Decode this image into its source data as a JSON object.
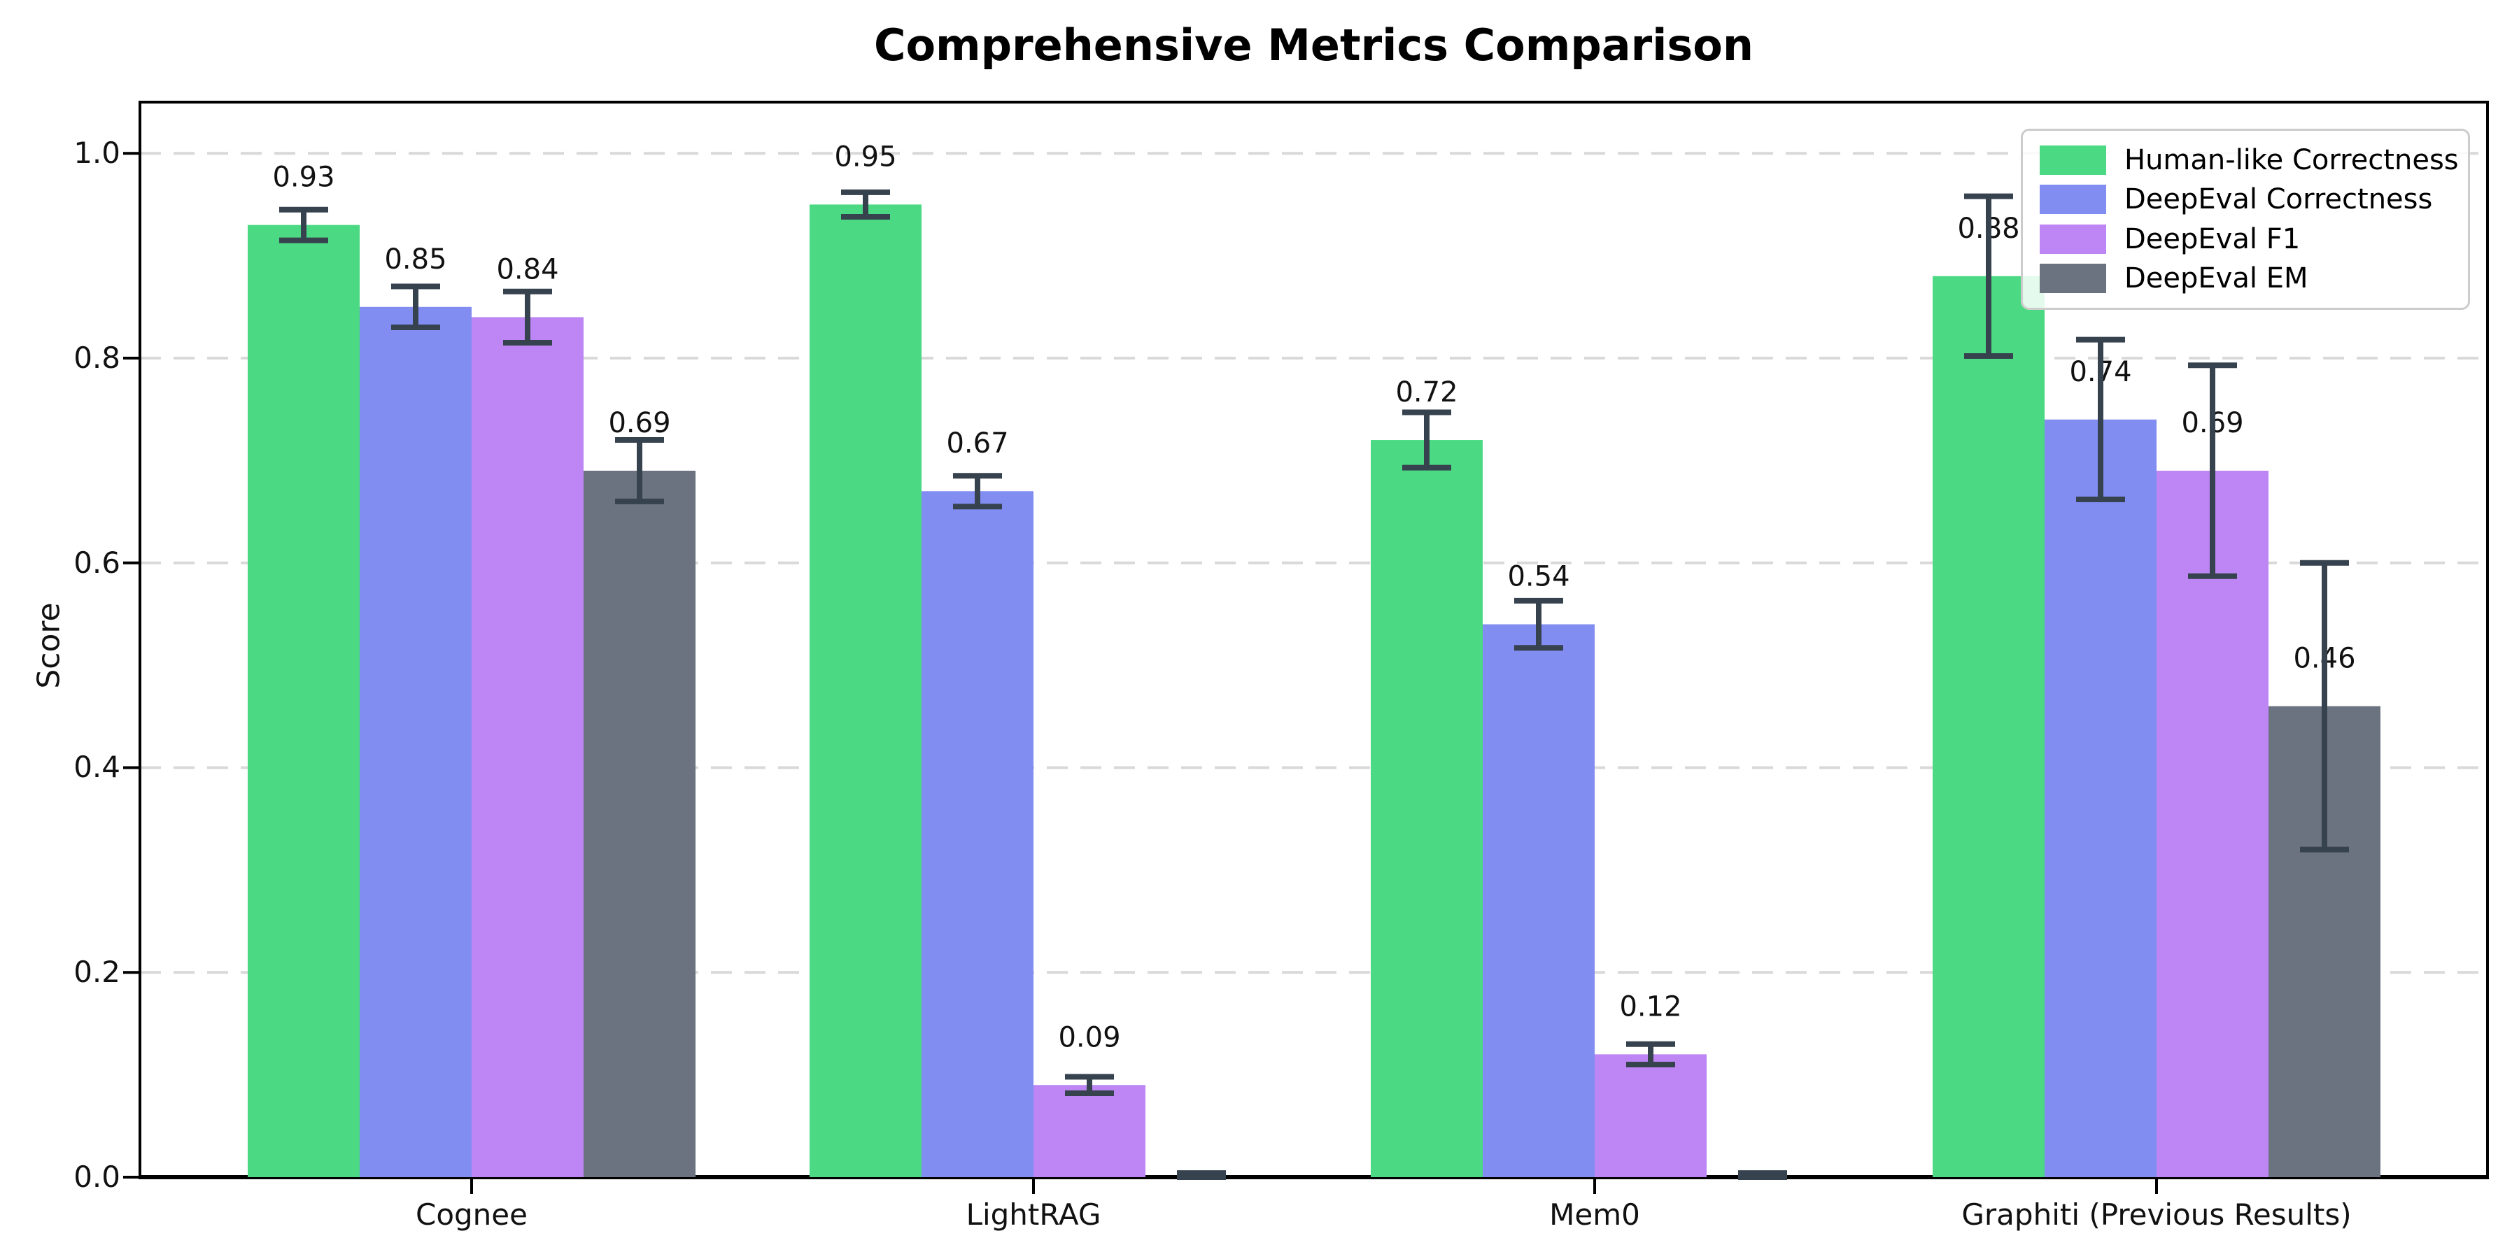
{
  "chart_data": {
    "type": "bar",
    "title": "Comprehensive Metrics Comparison",
    "xlabel": "",
    "ylabel": "Score",
    "ylim": [
      0,
      1.05
    ],
    "yticks": [
      "0.0",
      "0.2",
      "0.4",
      "0.6",
      "0.8",
      "1.0"
    ],
    "grid": "horizontal dashed gridlines at y tick positions",
    "legend_position": "upper right",
    "categories": [
      "Cognee",
      "LightRAG",
      "Mem0",
      "Graphiti (Previous Results)"
    ],
    "series": [
      {
        "name": "Human-like Correctness",
        "color": "#4bd983",
        "values": [
          0.93,
          0.95,
          0.72,
          0.88
        ],
        "errors": [
          0.015,
          0.012,
          0.027,
          0.078
        ],
        "labels": [
          "0.93",
          "0.95",
          "0.72",
          "0.88"
        ]
      },
      {
        "name": "DeepEval Correctness",
        "color": "#828df2",
        "values": [
          0.85,
          0.67,
          0.54,
          0.74
        ],
        "errors": [
          0.02,
          0.015,
          0.023,
          0.078
        ],
        "labels": [
          "0.85",
          "0.67",
          "0.54",
          "0.74"
        ]
      },
      {
        "name": "DeepEval F1",
        "color": "#bd86f4",
        "values": [
          0.84,
          0.09,
          0.12,
          0.69
        ],
        "errors": [
          0.025,
          0.008,
          0.01,
          0.103
        ],
        "labels": [
          "0.84",
          "0.09",
          "0.12",
          "0.69"
        ]
      },
      {
        "name": "DeepEval EM",
        "color": "#6b7280",
        "values": [
          0.69,
          0.0,
          0.0,
          0.46
        ],
        "errors": [
          0.03,
          0.004,
          0.004,
          0.14
        ],
        "labels": [
          "0.69",
          "",
          "",
          "0.46"
        ]
      }
    ],
    "error_bar_color": "#37424f",
    "grid_color": "#d9d9d9",
    "axis_color": "#000000"
  }
}
